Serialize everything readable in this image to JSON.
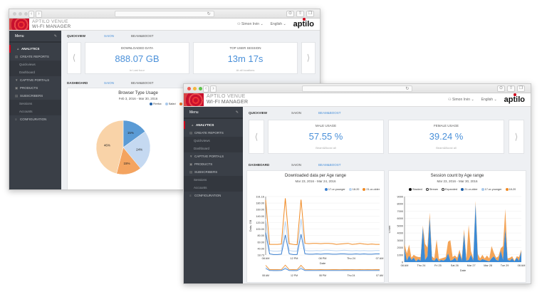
{
  "app": {
    "brand_line1": "APTILO VENUE",
    "brand_line2": "WI-FI MANAGER",
    "logo": "aptilo",
    "language": "English",
    "user": "Simon Irvin"
  },
  "colors": {
    "accent": "#4a90d9",
    "brand_red": "#d0021b",
    "sidebar": "#3a3f47",
    "orange": "#f08a24",
    "dark_blue": "#1f5fa8",
    "light_blue": "#a9c9ec",
    "light_orange": "#f7c99a"
  },
  "menu": {
    "title": "Menu",
    "items": [
      {
        "label": "ANALYTICS",
        "icon": "chart-icon"
      },
      {
        "label": "CREATE REPORTS",
        "icon": "report-icon"
      },
      {
        "label": "Quickviews"
      },
      {
        "label": "Dashboard"
      },
      {
        "label": "CAPTIVE PORTALS",
        "icon": "wifi-icon"
      },
      {
        "label": "PRODUCTS",
        "icon": "bag-icon"
      },
      {
        "label": "SUBSCRIBERS",
        "icon": "users-icon"
      },
      {
        "label": "Sessions"
      },
      {
        "label": "Accounts"
      },
      {
        "label": "CONFIGURATION",
        "icon": "sliders-icon"
      }
    ]
  },
  "back": {
    "quickview": {
      "label": "QUICKVIEW",
      "tab1": "SAION",
      "tab2": "BEAM&BOOST"
    },
    "cards": [
      {
        "title": "DOWNLOADED DATA",
        "value": "888.07 GB",
        "sub": "in Last hour"
      },
      {
        "title": "TOP USER SESSION",
        "value": "13m 17s",
        "sub": "At all locations"
      }
    ],
    "dashboard": {
      "label": "DASHBOARD",
      "tab1": "SAION",
      "tab2": "BEAM&BOOST"
    }
  },
  "front": {
    "quickview": {
      "label": "QUICKVIEW",
      "tab1": "SAION",
      "tab2": "BEAM&BOOST"
    },
    "cards": [
      {
        "title": "MALE USAGE",
        "value": "57.55 %",
        "sub": "Beam&Boost all"
      },
      {
        "title": "FEMALE USAGE",
        "value": "39.24 %",
        "sub": "Beam&Boost all"
      }
    ],
    "dashboard": {
      "label": "DASHBOARD",
      "tab1": "SAION",
      "tab2": "BEAM&BOOST"
    }
  },
  "chart_data": [
    {
      "type": "pie",
      "title": "Browser Type Usage",
      "subtitle": "Feb 3, 2016 - Mar 30, 2016",
      "legend_position": "top-right",
      "categories": [
        "Firefox",
        "Safari",
        "Edge",
        "Chrome"
      ],
      "values": [
        15,
        24,
        15,
        46
      ],
      "labels": [
        "15%",
        "24%",
        "15%",
        "46%"
      ],
      "colors": [
        "#5b9bd5",
        "#c5d9f1",
        "#f4a460",
        "#f9d3a8"
      ]
    },
    {
      "type": "line",
      "title": "Downloaded data per Age range",
      "subtitle": "Mar 23, 2016 - Mar 24, 2016",
      "legend_position": "top-right",
      "xlabel": "Date",
      "ylabel": "Data, GB",
      "ylim": [
        18.73,
        191.16
      ],
      "yticks": [
        "191.16",
        "180.00",
        "160.00",
        "140.00",
        "120.00",
        "100.00",
        "80.00",
        "60.00",
        "40.00",
        "18.73"
      ],
      "xticks": [
        "08 AM",
        "12 PM",
        "08 PM",
        "Thu 24",
        "07 AM"
      ],
      "series": [
        {
          "name": "17-or-younger",
          "color": "#3a7fd0",
          "values": [
            85,
            22,
            20,
            20,
            21,
            78,
            22,
            20,
            20,
            80,
            22,
            21,
            21,
            22,
            21,
            22,
            22,
            21,
            21,
            22,
            22,
            21,
            21,
            22,
            21,
            22,
            21,
            21,
            22,
            22
          ]
        },
        {
          "name": "18-20",
          "color": "#b9d3f0",
          "values": [
            125,
            32,
            30,
            30,
            31,
            118,
            32,
            30,
            30,
            125,
            32,
            31,
            31,
            32,
            31,
            33,
            33,
            32,
            31,
            32,
            33,
            32,
            31,
            32,
            31,
            32,
            31,
            31,
            32,
            32
          ]
        },
        {
          "name": "21-or-older",
          "color": "#f08a24",
          "values": [
            181,
            50,
            50,
            50,
            51,
            186,
            52,
            50,
            49,
            182,
            53,
            52,
            53,
            53,
            52,
            53,
            53,
            52,
            50,
            51,
            52,
            53,
            50,
            51,
            53,
            51,
            50,
            51,
            50,
            50
          ]
        }
      ]
    },
    {
      "type": "area",
      "title": "Session count by Age range",
      "subtitle": "Mar 23, 2016 - Mar 30, 2016",
      "legend_position": "top",
      "legend": [
        "Stacked",
        "Stream",
        "Expanded",
        "21-or-older",
        "17-or-younger",
        "18-20"
      ],
      "xlabel": "Date",
      "ylabel": "Count",
      "ylim": [
        0,
        9000
      ],
      "yticks": [
        "9000",
        "8000",
        "7000",
        "6000",
        "5000",
        "4000",
        "3000",
        "2000",
        "1000",
        "0"
      ],
      "xticks": [
        "08 AM",
        "Thu 24",
        "Fri 25",
        "Sat 26",
        "Mar 27",
        "Mar 28",
        "Tue 29",
        "08 AM"
      ],
      "series": [
        {
          "name": "21-or-older",
          "color": "#3a8ad6",
          "values": [
            1800,
            200,
            900,
            300,
            600,
            100,
            400,
            200,
            4800,
            300,
            800,
            6100,
            300,
            200,
            600,
            100,
            300,
            200,
            400,
            1200,
            200,
            300,
            600,
            100,
            1300,
            200,
            3900,
            200,
            300,
            1000,
            200,
            8000,
            300,
            200,
            400,
            300,
            200,
            100,
            500,
            800,
            300,
            200,
            1600,
            300,
            4500,
            300,
            200,
            500,
            100,
            600,
            200,
            1500
          ]
        },
        {
          "name": "18-20",
          "color": "#f39a45",
          "values": [
            700,
            1000,
            1500,
            300,
            400,
            700,
            300,
            500,
            200,
            2200,
            1200,
            700,
            500,
            300,
            2500,
            300,
            200,
            400,
            300,
            1600,
            2800,
            400,
            300,
            500,
            400,
            300,
            600,
            200,
            4800,
            500,
            300,
            400,
            800,
            300,
            600,
            200,
            700,
            400,
            1700,
            500,
            300,
            600,
            300,
            1900,
            2800,
            200,
            400,
            300,
            100,
            200,
            500,
            200
          ]
        }
      ]
    }
  ]
}
